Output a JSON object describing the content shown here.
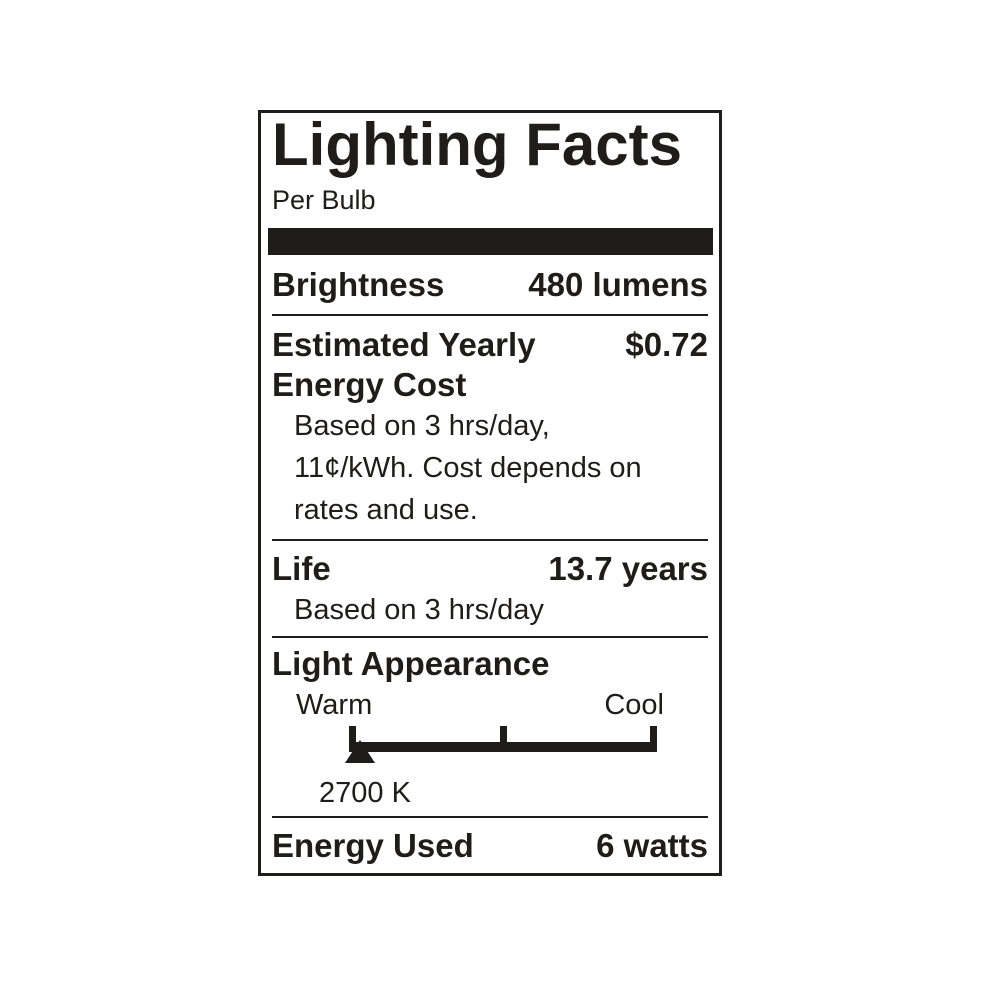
{
  "label": {
    "title": "Lighting Facts",
    "subtitle": "Per Bulb",
    "brightness": {
      "label": "Brightness",
      "value": "480 lumens"
    },
    "energy_cost": {
      "label_line1": "Estimated Yearly",
      "label_line2": "Energy Cost",
      "value": "$0.72",
      "note_lines": [
        "Based on 3 hrs/day,",
        "11¢/kWh. Cost depends on",
        "rates and use."
      ]
    },
    "life": {
      "label": "Life",
      "value": "13.7 years",
      "note": "Based on 3 hrs/day"
    },
    "light_appearance": {
      "label": "Light Appearance",
      "warm": "Warm",
      "cool": "Cool",
      "kelvin": "2700 K"
    },
    "energy_used": {
      "label": "Energy Used",
      "value": "6 watts"
    }
  },
  "colors": {
    "ink": "#1e1d1b",
    "background": "#ffffff"
  }
}
